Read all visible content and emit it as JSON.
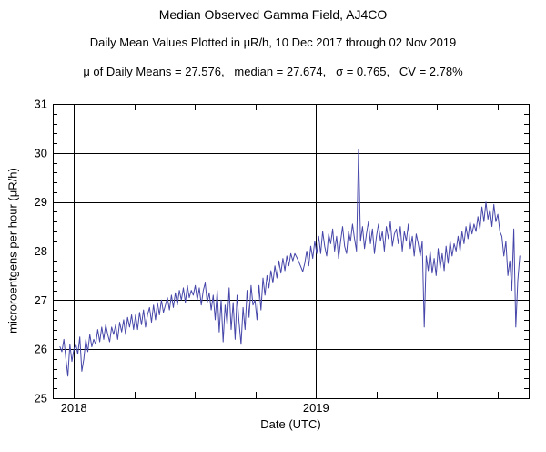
{
  "chart_data": {
    "type": "line",
    "title": "Median Observed Gamma Field, AJ4CO",
    "subtitle": "Daily Mean Values Plotted in μR/h, 10 Dec 2017 through 02 Nov 2019",
    "stats_text": "μ of Daily Means = 27.576,   median = 27.674,   σ = 0.765,   CV = 2.78%",
    "stats": {
      "mean_of_daily_means": 27.576,
      "median": 27.674,
      "sigma": 0.765,
      "cv_percent": 2.78
    },
    "xlabel": "Date (UTC)",
    "ylabel": "microroentgens per hour (μR/h)",
    "x_axis": {
      "range_year_fraction": [
        2017.913,
        2019.878
      ],
      "major_ticks": [
        {
          "value": 2018,
          "label": "2018"
        },
        {
          "value": 2019,
          "label": "2019"
        }
      ],
      "minor_tick_interval_years": 0.25,
      "grid": true
    },
    "y_axis": {
      "range": [
        25,
        31
      ],
      "major_ticks": [
        25,
        26,
        27,
        28,
        29,
        30,
        31
      ],
      "minor_tick_interval": 0.2,
      "grid": true
    },
    "legend": "none",
    "series": [
      {
        "name": "daily-mean-gamma-field",
        "color": "#4646aa",
        "start_year_fraction": 2017.9425,
        "sample_interval_days": 3,
        "values": [
          26.05,
          25.95,
          26.2,
          25.8,
          25.45,
          26.1,
          25.75,
          26.0,
          26.1,
          25.9,
          26.25,
          25.55,
          25.8,
          26.2,
          25.95,
          26.3,
          26.05,
          26.2,
          26.1,
          26.4,
          26.15,
          26.45,
          26.2,
          26.5,
          26.3,
          26.15,
          26.45,
          26.3,
          26.5,
          26.2,
          26.55,
          26.35,
          26.6,
          26.3,
          26.65,
          26.45,
          26.7,
          26.4,
          26.7,
          26.4,
          26.75,
          26.5,
          26.8,
          26.45,
          26.7,
          26.85,
          26.55,
          26.9,
          26.6,
          26.95,
          26.7,
          27.0,
          26.75,
          26.9,
          27.05,
          26.8,
          27.1,
          26.85,
          27.15,
          26.9,
          27.2,
          27.0,
          27.25,
          26.95,
          27.3,
          27.05,
          27.2,
          27.1,
          27.3,
          27.0,
          27.25,
          26.9,
          27.2,
          27.35,
          26.95,
          27.15,
          26.8,
          27.1,
          26.6,
          27.2,
          26.35,
          27.0,
          26.15,
          26.9,
          26.5,
          27.25,
          26.4,
          26.95,
          26.2,
          27.1,
          26.55,
          26.1,
          26.85,
          26.4,
          27.2,
          26.65,
          27.3,
          26.9,
          27.0,
          26.6,
          27.3,
          26.8,
          27.45,
          27.1,
          27.5,
          27.25,
          27.6,
          27.35,
          27.7,
          27.45,
          27.8,
          27.55,
          27.85,
          27.6,
          27.9,
          27.7,
          27.95,
          27.8,
          27.95,
          27.87,
          27.78,
          27.68,
          27.58,
          27.75,
          28.0,
          27.7,
          28.1,
          27.85,
          28.2,
          27.95,
          28.3,
          27.95,
          28.4,
          28.1,
          27.9,
          28.35,
          28.15,
          28.45,
          28.0,
          28.3,
          27.85,
          28.2,
          28.5,
          28.1,
          27.95,
          28.4,
          28.2,
          28.55,
          28.25,
          28.0,
          30.07,
          28.2,
          28.5,
          28.05,
          28.35,
          28.6,
          28.15,
          28.45,
          27.95,
          28.3,
          28.55,
          28.2,
          28.4,
          28.0,
          28.5,
          28.25,
          28.6,
          28.1,
          28.35,
          28.45,
          28.15,
          28.5,
          28.0,
          28.4,
          28.2,
          28.55,
          28.05,
          28.3,
          27.9,
          28.35,
          28.15,
          27.9,
          28.2,
          26.45,
          27.9,
          27.6,
          28.0,
          27.55,
          27.85,
          27.5,
          28.05,
          27.65,
          27.95,
          27.6,
          28.1,
          27.75,
          28.2,
          27.9,
          28.15,
          28.0,
          28.3,
          28.0,
          28.4,
          28.15,
          28.5,
          28.25,
          28.6,
          28.35,
          28.55,
          28.4,
          28.7,
          28.45,
          28.9,
          28.6,
          29.0,
          28.65,
          28.85,
          28.5,
          28.95,
          28.6,
          28.75,
          28.4,
          28.3,
          27.9,
          28.2,
          27.5,
          27.8,
          27.2,
          28.45,
          26.45,
          27.4,
          27.9
        ]
      }
    ]
  }
}
